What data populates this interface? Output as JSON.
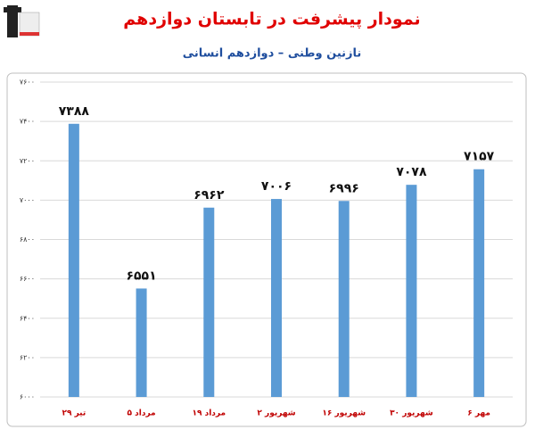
{
  "chart_data": {
    "type": "bar",
    "title": "نمودار پیشرفت در تابستان دوازدهم",
    "subtitle": "نازنین وطنی – دوازدهم انسانی",
    "categories": [
      "۲۹ تیر",
      "۵ مرداد",
      "۱۹ مرداد",
      "۲ شهریور",
      "۱۶ شهریور",
      "۳۰ شهریور",
      "۶ مهر"
    ],
    "values": [
      7388,
      6551,
      6962,
      7006,
      6996,
      7078,
      7157
    ],
    "value_labels": [
      "۷۳۸۸",
      "۶۵۵۱",
      "۶۹۶۲",
      "۷۰۰۶",
      "۶۹۹۶",
      "۷۰۷۸",
      "۷۱۵۷"
    ],
    "color": "#5b9bd5",
    "ylim": [
      6000,
      7600
    ],
    "yticks": [
      {
        "value": 6000,
        "label": "۶۰۰۰"
      },
      {
        "value": 6200,
        "label": "۶۲۰۰"
      },
      {
        "value": 6400,
        "label": "۶۴۰۰"
      },
      {
        "value": 6600,
        "label": "۶۶۰۰"
      },
      {
        "value": 6800,
        "label": "۶۸۰۰"
      },
      {
        "value": 7000,
        "label": "۷۰۰۰"
      },
      {
        "value": 7200,
        "label": "۷۲۰۰"
      },
      {
        "value": 7400,
        "label": "۷۴۰۰"
      },
      {
        "value": 7600,
        "label": "۷۶۰۰"
      }
    ],
    "grid": true
  }
}
